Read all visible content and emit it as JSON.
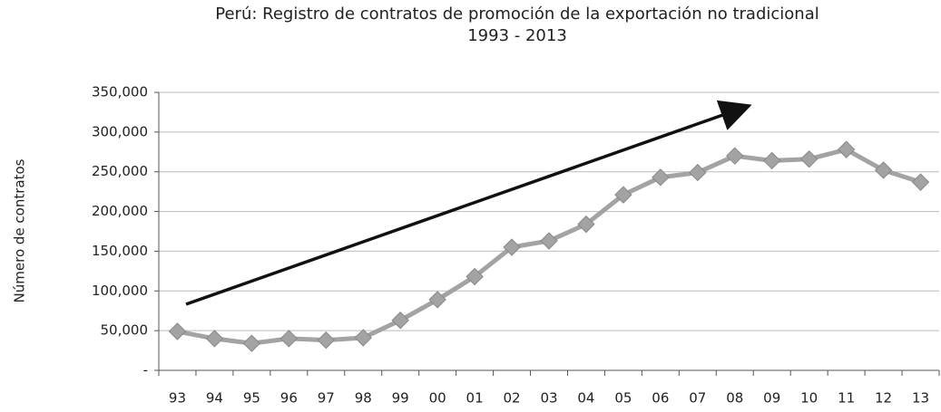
{
  "chart_data": {
    "type": "line",
    "title": "Perú: Registro de contratos de promoción de la exportación  no tradicional",
    "subtitle": "1993 - 2013",
    "y_label": "Número de contratos",
    "categories": [
      "93",
      "94",
      "95",
      "96",
      "97",
      "98",
      "99",
      "00",
      "01",
      "02",
      "03",
      "04",
      "05",
      "06",
      "07",
      "08",
      "09",
      "10",
      "11",
      "12",
      "13"
    ],
    "values": [
      49000,
      40000,
      34000,
      40000,
      38000,
      41000,
      63000,
      89000,
      118000,
      155000,
      163000,
      184000,
      221000,
      243000,
      249000,
      270000,
      264000,
      266000,
      278000,
      252000,
      237000
    ],
    "color": "#a3a3a3",
    "ylim": [
      0,
      350000
    ],
    "yticks": [
      {
        "value": 0,
        "label": "-"
      },
      {
        "value": 50000,
        "label": "50,000"
      },
      {
        "value": 100000,
        "label": "100,000"
      },
      {
        "value": 150000,
        "label": "150,000"
      },
      {
        "value": 200000,
        "label": "200,000"
      },
      {
        "value": 250000,
        "label": "250,000"
      },
      {
        "value": 300000,
        "label": "300,000"
      },
      {
        "value": 350000,
        "label": "350,000"
      }
    ],
    "grid": true
  }
}
